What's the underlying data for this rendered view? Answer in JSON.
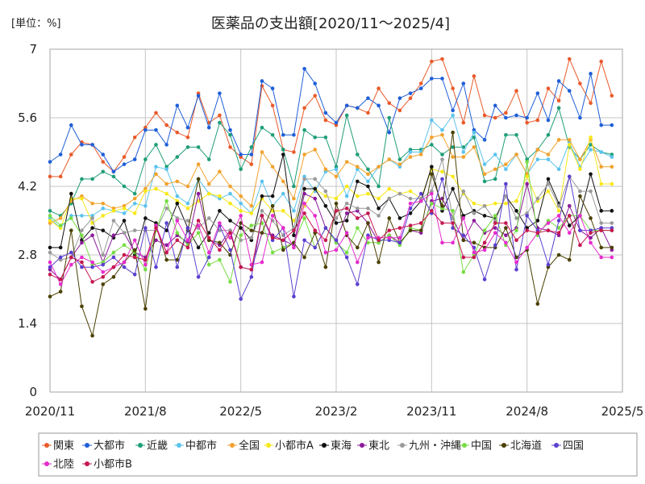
{
  "chart_data": {
    "type": "line",
    "title": "医薬品の支出額[2020/11～2025/4]",
    "ylabel": "[単位：%]",
    "ylim": [
      0,
      7
    ],
    "yticks": [
      0,
      1.4,
      2.8,
      4.2,
      5.6,
      7
    ],
    "xlim": [
      "2020/11",
      "2025/5"
    ],
    "xticks": [
      "2020/11",
      "2021/8",
      "2022/5",
      "2023/2",
      "2023/11",
      "2024/8",
      "2025/5"
    ],
    "grid": true,
    "markers": true,
    "legend_position": "bottom",
    "x": [
      "2020/11",
      "2020/12",
      "2021/1",
      "2021/2",
      "2021/3",
      "2021/4",
      "2021/5",
      "2021/6",
      "2021/7",
      "2021/8",
      "2021/9",
      "2021/10",
      "2021/11",
      "2021/12",
      "2022/1",
      "2022/2",
      "2022/3",
      "2022/4",
      "2022/5",
      "2022/6",
      "2022/7",
      "2022/8",
      "2022/9",
      "2022/10",
      "2022/11",
      "2022/12",
      "2023/1",
      "2023/2",
      "2023/3",
      "2023/4",
      "2023/5",
      "2023/6",
      "2023/7",
      "2023/8",
      "2023/9",
      "2023/10",
      "2023/11",
      "2023/12",
      "2024/1",
      "2024/2",
      "2024/3",
      "2024/4",
      "2024/5",
      "2024/6",
      "2024/7",
      "2024/8",
      "2024/9",
      "2024/10",
      "2024/11",
      "2024/12",
      "2025/1",
      "2025/2",
      "2025/3",
      "2025/4"
    ],
    "series": [
      {
        "name": "関東",
        "color": "#ea5a2a",
        "values": [
          4.4,
          4.4,
          4.85,
          5.1,
          5.05,
          4.7,
          4.5,
          4.8,
          5.2,
          5.4,
          5.7,
          5.45,
          5.3,
          5.2,
          6.1,
          5.5,
          5.65,
          5.0,
          4.8,
          4.65,
          6.25,
          5.85,
          4.95,
          4.9,
          5.8,
          6.05,
          5.55,
          5.45,
          5.85,
          5.8,
          5.7,
          6.2,
          5.9,
          5.75,
          6.0,
          6.3,
          6.75,
          6.8,
          6.2,
          5.5,
          6.45,
          5.65,
          5.6,
          5.7,
          6.15,
          5.5,
          5.55,
          6.2,
          5.95,
          6.8,
          6.3,
          5.9,
          6.75,
          6.05
        ]
      },
      {
        "name": "大都市",
        "color": "#1f5fd8",
        "values": [
          4.7,
          4.85,
          5.45,
          5.05,
          5.05,
          4.85,
          4.5,
          4.65,
          4.75,
          5.35,
          5.35,
          5.05,
          5.85,
          5.4,
          6.05,
          5.4,
          6.1,
          5.35,
          4.85,
          4.85,
          6.35,
          6.2,
          5.25,
          5.25,
          6.6,
          6.3,
          5.7,
          5.5,
          5.85,
          5.8,
          6.0,
          5.85,
          5.3,
          6.0,
          6.1,
          6.2,
          6.4,
          6.4,
          5.75,
          6.3,
          5.35,
          5.15,
          5.85,
          5.6,
          5.65,
          5.6,
          6.1,
          5.55,
          6.35,
          6.15,
          5.6,
          6.5,
          5.45,
          5.45
        ]
      },
      {
        "name": "近畿",
        "color": "#1e9e78",
        "values": [
          3.7,
          3.6,
          3.85,
          4.35,
          4.35,
          4.5,
          4.4,
          4.2,
          4.05,
          4.75,
          5.05,
          4.6,
          4.8,
          5.0,
          5.0,
          4.75,
          5.5,
          5.25,
          4.55,
          5.0,
          5.4,
          5.25,
          4.95,
          4.2,
          5.35,
          5.2,
          5.2,
          4.6,
          5.65,
          4.85,
          4.55,
          4.2,
          5.6,
          4.75,
          4.95,
          4.95,
          5.05,
          4.85,
          5.0,
          5.0,
          5.2,
          4.3,
          4.35,
          5.25,
          5.25,
          4.75,
          4.95,
          5.25,
          5.8,
          5.0,
          4.75,
          5.05,
          4.9,
          4.85
        ]
      },
      {
        "name": "中都市",
        "color": "#5cc3ee",
        "values": [
          3.55,
          3.35,
          3.6,
          3.6,
          3.6,
          3.75,
          3.7,
          3.65,
          3.85,
          3.8,
          4.6,
          4.55,
          4.0,
          3.85,
          4.35,
          4.05,
          3.95,
          4.05,
          3.85,
          3.65,
          4.3,
          3.8,
          4.05,
          3.7,
          4.4,
          4.1,
          4.5,
          4.55,
          4.0,
          4.55,
          4.3,
          4.6,
          4.75,
          4.6,
          4.9,
          4.9,
          5.55,
          5.35,
          5.65,
          4.9,
          5.3,
          4.65,
          4.85,
          4.55,
          4.85,
          4.45,
          4.75,
          4.75,
          4.55,
          5.1,
          4.6,
          4.95,
          4.9,
          4.8
        ]
      },
      {
        "name": "全国",
        "color": "#f2a22e",
        "values": [
          3.45,
          3.55,
          3.9,
          4.0,
          3.85,
          3.85,
          3.75,
          3.8,
          3.95,
          4.15,
          4.45,
          4.25,
          4.3,
          4.2,
          4.65,
          4.25,
          4.5,
          4.2,
          4.0,
          3.8,
          4.9,
          4.6,
          4.3,
          3.95,
          4.85,
          4.95,
          4.55,
          4.4,
          4.7,
          4.6,
          4.45,
          4.6,
          4.75,
          4.65,
          4.8,
          4.85,
          5.2,
          5.25,
          4.8,
          4.8,
          5.0,
          4.45,
          4.55,
          4.65,
          4.85,
          4.45,
          4.95,
          4.85,
          5.15,
          5.15,
          4.75,
          5.15,
          4.6,
          4.6
        ]
      },
      {
        "name": "小都市A",
        "color": "#f7e81a",
        "values": [
          3.5,
          3.35,
          3.95,
          3.95,
          3.45,
          3.6,
          3.7,
          3.75,
          3.65,
          4.1,
          4.15,
          4.05,
          3.9,
          3.75,
          3.9,
          4.05,
          4.0,
          3.85,
          3.7,
          3.65,
          3.95,
          3.7,
          3.7,
          3.5,
          3.8,
          4.15,
          4.0,
          3.95,
          4.2,
          4.0,
          4.05,
          3.95,
          4.15,
          4.05,
          4.1,
          3.95,
          4.55,
          4.5,
          4.4,
          4.05,
          3.85,
          3.8,
          3.85,
          3.85,
          3.9,
          4.4,
          3.9,
          4.1,
          3.7,
          5.05,
          4.55,
          5.2,
          4.25,
          4.25
        ]
      },
      {
        "name": "東海",
        "color": "#111111",
        "values": [
          2.95,
          2.95,
          4.05,
          3.1,
          3.35,
          3.3,
          3.15,
          3.5,
          2.8,
          3.55,
          3.45,
          3.3,
          3.85,
          3.35,
          2.95,
          3.25,
          3.7,
          3.5,
          3.35,
          3.1,
          4.0,
          4.0,
          4.85,
          3.2,
          4.15,
          4.15,
          3.8,
          3.45,
          3.5,
          4.3,
          4.2,
          3.75,
          3.95,
          3.55,
          3.65,
          3.9,
          4.6,
          3.7,
          4.15,
          3.6,
          3.7,
          3.6,
          3.55,
          4.0,
          3.7,
          3.35,
          3.5,
          4.35,
          3.85,
          3.4,
          3.6,
          4.45,
          3.7,
          3.7
        ]
      },
      {
        "name": "東北",
        "color": "#8b1a9b",
        "values": [
          2.5,
          2.3,
          2.75,
          3.05,
          3.2,
          2.65,
          3.2,
          3.25,
          2.85,
          2.75,
          3.1,
          3.0,
          3.2,
          3.05,
          4.05,
          3.1,
          3.0,
          3.3,
          2.55,
          2.5,
          3.25,
          3.2,
          3.1,
          3.0,
          4.05,
          3.95,
          3.35,
          3.1,
          3.65,
          3.7,
          3.45,
          3.05,
          3.2,
          3.05,
          3.3,
          3.25,
          3.9,
          3.95,
          3.55,
          3.1,
          3.5,
          3.25,
          3.35,
          3.2,
          3.35,
          4.25,
          3.35,
          3.3,
          3.2,
          3.8,
          3.3,
          3.15,
          3.35,
          2.9
        ]
      },
      {
        "name": "九州・沖縄",
        "color": "#9a9a9a",
        "values": [
          2.85,
          2.7,
          2.75,
          3.3,
          3.55,
          2.8,
          3.5,
          3.25,
          3.3,
          3.3,
          3.3,
          3.75,
          3.55,
          3.5,
          3.35,
          3.55,
          3.3,
          3.3,
          3.1,
          3.15,
          3.7,
          3.5,
          3.2,
          3.35,
          4.35,
          4.35,
          4.1,
          3.55,
          3.85,
          3.75,
          3.75,
          3.6,
          3.95,
          4.05,
          3.95,
          3.95,
          4.1,
          4.75,
          3.55,
          4.1,
          3.65,
          3.8,
          3.5,
          4.0,
          3.55,
          3.65,
          3.95,
          4.25,
          3.8,
          4.4,
          4.1,
          4.1,
          3.45,
          3.45
        ]
      },
      {
        "name": "中国",
        "color": "#77dd44",
        "values": [
          3.6,
          3.4,
          3.55,
          3.2,
          2.6,
          2.65,
          2.85,
          3.0,
          2.85,
          2.5,
          3.3,
          3.9,
          3.25,
          3.0,
          3.25,
          2.6,
          2.7,
          2.25,
          3.2,
          3.4,
          3.45,
          2.85,
          2.95,
          3.05,
          3.55,
          2.95,
          3.35,
          3.05,
          2.85,
          3.35,
          3.05,
          3.05,
          3.2,
          3.0,
          3.35,
          3.3,
          3.85,
          3.75,
          3.7,
          2.45,
          2.8,
          3.3,
          3.6,
          3.0,
          3.3,
          4.7,
          3.2,
          3.5,
          3.35,
          3.6,
          3.6,
          3.3,
          3.3,
          3.3
        ]
      },
      {
        "name": "北海道",
        "color": "#4a4000",
        "values": [
          1.95,
          2.05,
          3.3,
          1.75,
          1.15,
          2.2,
          2.35,
          2.65,
          2.9,
          1.7,
          3.4,
          2.7,
          2.7,
          3.3,
          4.35,
          3.1,
          3.05,
          2.8,
          3.45,
          3.3,
          3.25,
          3.8,
          2.9,
          3.05,
          2.75,
          3.25,
          2.55,
          3.85,
          3.2,
          2.95,
          3.45,
          2.65,
          3.55,
          3.05,
          3.3,
          3.3,
          4.45,
          3.8,
          5.3,
          3.1,
          3.05,
          2.95,
          2.95,
          3.35,
          2.75,
          2.9,
          1.8,
          2.55,
          2.8,
          2.7,
          4.0,
          3.55,
          2.95,
          2.95
        ]
      },
      {
        "name": "四国",
        "color": "#5b3fd0",
        "values": [
          2.55,
          2.75,
          2.85,
          2.55,
          2.55,
          2.6,
          2.75,
          2.55,
          2.4,
          3.35,
          2.55,
          3.45,
          2.55,
          3.35,
          2.35,
          2.75,
          3.4,
          2.9,
          1.9,
          2.35,
          3.6,
          3.1,
          3.35,
          1.95,
          3.1,
          2.95,
          3.35,
          3.1,
          2.75,
          2.2,
          3.2,
          3.1,
          3.1,
          3.05,
          3.75,
          4.05,
          3.65,
          4.35,
          3.35,
          3.2,
          2.95,
          2.3,
          3.0,
          4.25,
          2.5,
          3.6,
          3.3,
          2.6,
          3.5,
          4.4,
          3.3,
          3.3,
          3.35,
          3.35
        ]
      },
      {
        "name": "北陸",
        "color": "#e62ccd",
        "values": [
          2.65,
          2.2,
          2.6,
          2.75,
          2.65,
          2.45,
          2.55,
          2.65,
          3.1,
          2.6,
          3.4,
          2.85,
          3.5,
          3.1,
          3.4,
          2.85,
          3.45,
          3.15,
          3.6,
          2.6,
          2.65,
          3.6,
          3.35,
          2.95,
          3.85,
          3.6,
          2.85,
          2.9,
          3.25,
          2.65,
          3.15,
          3.15,
          3.15,
          3.15,
          3.85,
          3.9,
          4.05,
          3.05,
          3.05,
          3.55,
          2.85,
          2.9,
          3.25,
          3.05,
          2.65,
          2.95,
          3.25,
          3.45,
          3.6,
          3.25,
          3.6,
          3.05,
          2.75,
          2.75
        ]
      },
      {
        "name": "小都市B",
        "color": "#c4174f",
        "values": [
          2.4,
          2.3,
          2.75,
          2.65,
          2.25,
          2.35,
          2.55,
          2.8,
          2.75,
          2.7,
          3.35,
          2.85,
          3.1,
          2.95,
          3.5,
          3.15,
          2.9,
          3.25,
          2.55,
          2.5,
          3.6,
          3.15,
          3.1,
          3.3,
          3.65,
          3.3,
          3.1,
          3.7,
          3.75,
          3.55,
          3.65,
          3.1,
          3.3,
          3.35,
          3.4,
          3.45,
          3.7,
          3.45,
          3.45,
          2.75,
          2.75,
          3.05,
          3.45,
          3.45,
          3.1,
          3.3,
          3.25,
          3.3,
          3.25,
          3.6,
          3.0,
          3.25,
          3.3,
          3.3
        ]
      }
    ]
  }
}
